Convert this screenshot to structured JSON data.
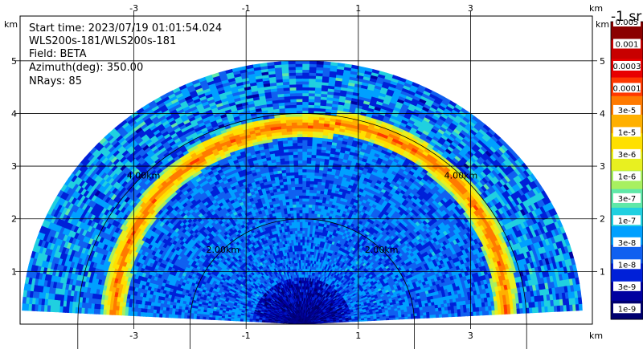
{
  "info": {
    "start_time": "Start time: 2023/07/19 01:01:54.024",
    "instrument": "WLS200s-181/WLS200s-181",
    "field": "Field: BETA",
    "azimuth": "Azimuth(deg): 350.00",
    "nrays": "NRays: 85"
  },
  "chart_data": {
    "type": "heatmap",
    "title": "",
    "x_unit": "km",
    "y_unit": "km",
    "xlim": [
      -5.1,
      5.1
    ],
    "ylim": [
      0,
      5.85
    ],
    "x_ticks": [
      -3,
      -1,
      1,
      3
    ],
    "y_ticks": [
      1,
      2,
      3,
      4,
      5
    ],
    "x_tick_labels": [
      "-3",
      "-1",
      "1",
      "3"
    ],
    "y_tick_labels": [
      "1",
      "2",
      "3",
      "4",
      "5"
    ],
    "grid": true,
    "range_rings_km": [
      2,
      4
    ],
    "range_ring_labels": [
      "2.00km",
      "2.00km",
      "4.00km",
      "4.00km"
    ],
    "max_range_km": 5.0,
    "elevation_min_deg": 3,
    "elevation_max_deg": 177,
    "features": [
      {
        "desc": "elevated aerosol layer",
        "range_km": 3.55,
        "peak_log10_beta": -4.1
      }
    ],
    "colorbar": {
      "title": "-1 sr",
      "scale": "log",
      "labels": [
        "0.005",
        "0.001",
        "0.0003",
        "0.0001",
        "3e-5",
        "1e-5",
        "3e-6",
        "1e-6",
        "3e-7",
        "1e-7",
        "3e-8",
        "1e-8",
        "3e-9",
        "1e-9"
      ],
      "colors": [
        "#8b0000",
        "#c80000",
        "#e80000",
        "#ff3800",
        "#ff7a00",
        "#ffb000",
        "#ffe000",
        "#e8f020",
        "#a8f060",
        "#60e8a8",
        "#20d0e0",
        "#00a0ff",
        "#1060f0",
        "#0020d8",
        "#0000a0",
        "#000070"
      ]
    }
  }
}
